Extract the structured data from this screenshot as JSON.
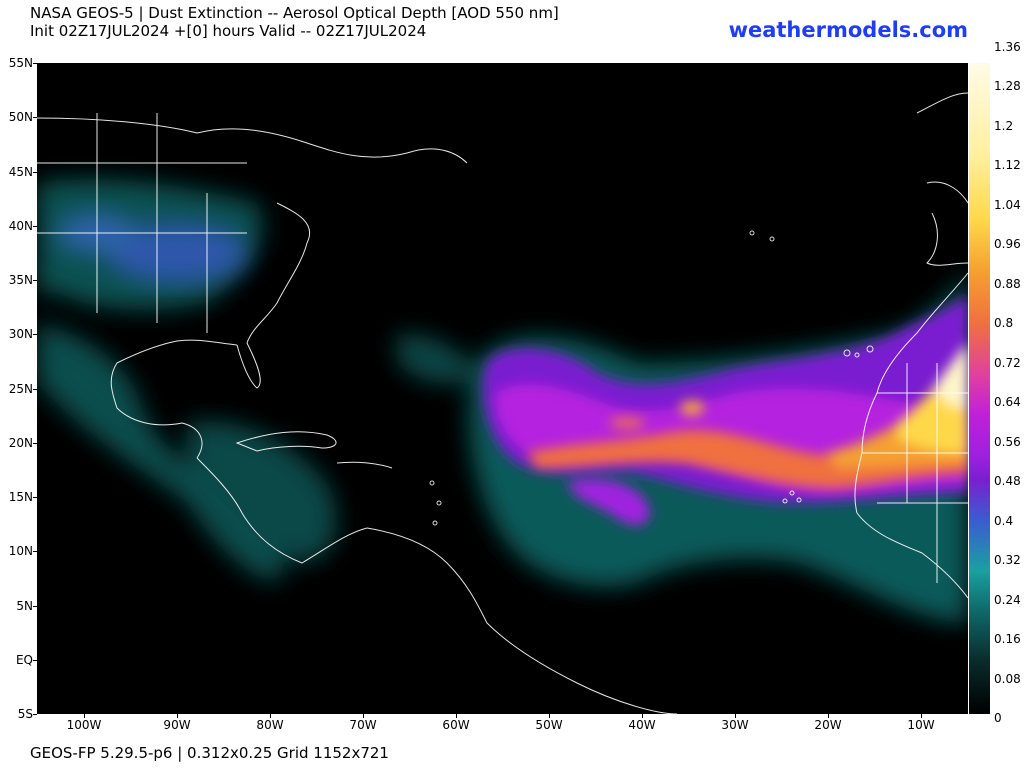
{
  "header": {
    "title_line1": "NASA GEOS-5 | Dust Extinction -- Aerosol Optical Depth [AOD 550 nm]",
    "title_line2": "Init 02Z17JUL2024 +[0] hours Valid -- 02Z17JUL2024",
    "brand": "weathermodels.com"
  },
  "map": {
    "lat_labels": [
      "55N",
      "50N",
      "45N",
      "40N",
      "35N",
      "30N",
      "25N",
      "20N",
      "15N",
      "10N",
      "5N",
      "EQ",
      "5S"
    ],
    "lon_labels": [
      "100W",
      "90W",
      "80W",
      "70W",
      "60W",
      "50W",
      "40W",
      "30W",
      "20W",
      "10W"
    ]
  },
  "colorbar": {
    "labels": [
      "1.36",
      "1.28",
      "1.2",
      "1.12",
      "1.04",
      "0.96",
      "0.88",
      "0.8",
      "0.72",
      "0.64",
      "0.56",
      "0.48",
      "0.4",
      "0.32",
      "0.24",
      "0.16",
      "0.08",
      "0"
    ],
    "min": 0,
    "max": 1.36
  },
  "footer": {
    "text": "GEOS-FP 5.29.5-p6 | 0.312x0.25 Grid 1152x721"
  }
}
